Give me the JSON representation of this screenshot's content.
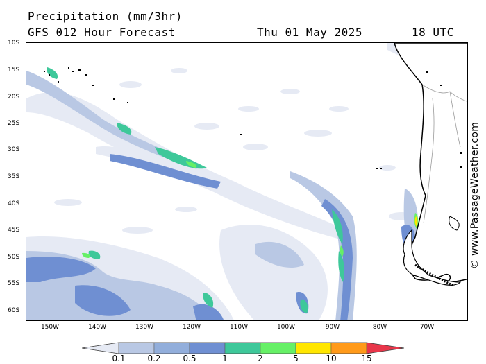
{
  "header": {
    "title": "Precipitation (mm/3hr)",
    "model": "GFS 012 Hour Forecast",
    "date": "Thu 01 May 2025",
    "time": "18 UTC"
  },
  "lat_labels": [
    "10S",
    "15S",
    "20S",
    "25S",
    "30S",
    "35S",
    "40S",
    "45S",
    "50S",
    "55S",
    "60S"
  ],
  "lon_labels": [
    "150W",
    "140W",
    "130W",
    "120W",
    "110W",
    "100W",
    "90W",
    "80W",
    "70W"
  ],
  "credit": "© www.PassageWeather.com",
  "legend": {
    "labels": [
      "0.1",
      "0.2",
      "0.5",
      "1",
      "2",
      "5",
      "10",
      "15"
    ],
    "colors": [
      "#e6eaf4",
      "#b9c8e4",
      "#92aedb",
      "#6f8fd2",
      "#3ec89a",
      "#66f066",
      "#ffe600",
      "#ff9a1a",
      "#e8364a"
    ]
  },
  "colors": {
    "land_border": "#000000",
    "country_border": "#9a9a9a"
  }
}
